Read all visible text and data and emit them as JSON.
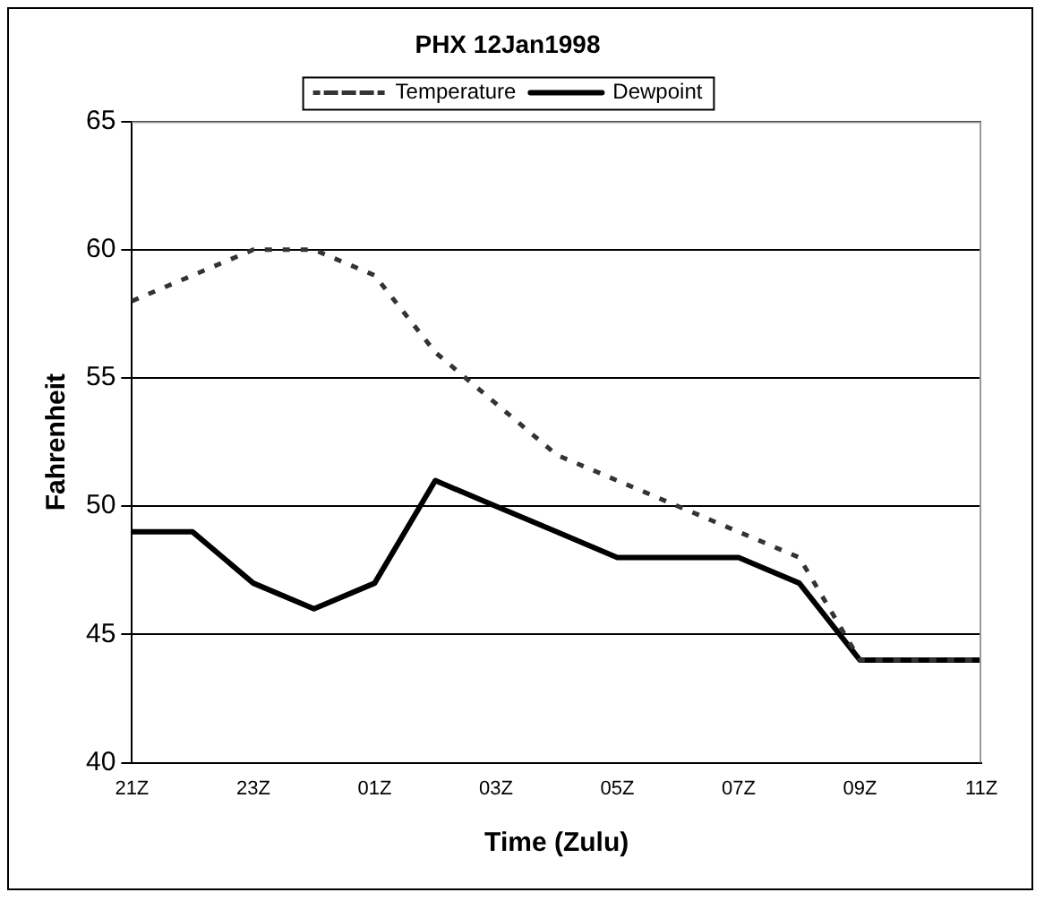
{
  "chart_data": {
    "type": "line",
    "title": "PHX 12Jan1998",
    "xlabel": "Time (Zulu)",
    "ylabel": "Fahrenheit",
    "categories": [
      "21Z",
      null,
      "23Z",
      null,
      "01Z",
      null,
      "03Z",
      null,
      "05Z",
      null,
      "07Z",
      null,
      "09Z",
      null,
      "11Z"
    ],
    "series": [
      {
        "name": "Temperature",
        "color": "#333333",
        "line_style": "dotted",
        "values": [
          58,
          59,
          60,
          60,
          59,
          56,
          54,
          52,
          51,
          50,
          49,
          48,
          44,
          44,
          44
        ]
      },
      {
        "name": "Dewpoint",
        "color": "#000000",
        "line_style": "solid",
        "values": [
          49,
          49,
          47,
          46,
          47,
          51,
          50,
          49,
          48,
          48,
          48,
          47,
          44,
          44,
          44
        ]
      }
    ],
    "ylim": [
      40,
      65
    ],
    "yticks": [
      40,
      45,
      50,
      55,
      60,
      65
    ],
    "grid": "y",
    "legend": "top",
    "marker": "none"
  }
}
